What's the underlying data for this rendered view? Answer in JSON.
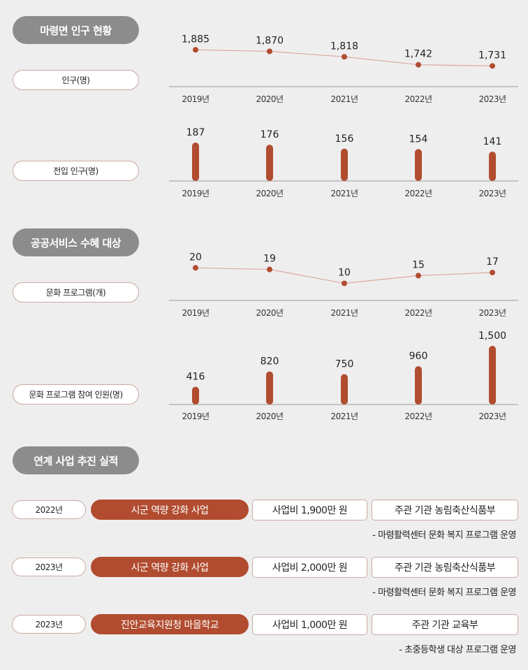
{
  "sections": {
    "population": "마령면 인구 현황",
    "service": "공공서비스 수혜 대상",
    "projects": "연계 사업 추진 실적"
  },
  "chart_data": [
    {
      "type": "line",
      "label": "인구(명)",
      "categories": [
        "2019년",
        "2020년",
        "2021년",
        "2022년",
        "2023년"
      ],
      "values": [
        1885,
        1870,
        1818,
        1742,
        1731
      ],
      "value_labels": [
        "1,885",
        "1,870",
        "1,818",
        "1,742",
        "1,731"
      ],
      "ylim": [
        1700,
        1900
      ]
    },
    {
      "type": "bar",
      "label": "전입 인구(명)",
      "categories": [
        "2019년",
        "2020년",
        "2021년",
        "2022년",
        "2023년"
      ],
      "values": [
        187,
        176,
        156,
        154,
        141
      ],
      "value_labels": [
        "187",
        "176",
        "156",
        "154",
        "141"
      ],
      "ylim": [
        0,
        187
      ]
    },
    {
      "type": "line",
      "label": "문화 프로그램(개)",
      "categories": [
        "2019년",
        "2020년",
        "2021년",
        "2022년",
        "2023년"
      ],
      "values": [
        20,
        19,
        10,
        15,
        17
      ],
      "value_labels": [
        "20",
        "19",
        "10",
        "15",
        "17"
      ],
      "ylim": [
        8,
        22
      ]
    },
    {
      "type": "bar",
      "label": "문화 프로그램 참여 인원(명)",
      "categories": [
        "2019년",
        "2020년",
        "2021년",
        "2022년",
        "2023년"
      ],
      "values": [
        416,
        820,
        750,
        960,
        1500
      ],
      "value_labels": [
        "416",
        "820",
        "750",
        "960",
        "1,500"
      ],
      "ylim": [
        0,
        1500
      ]
    }
  ],
  "projects": [
    {
      "year": "2022년",
      "name": "시군 역량 강화 사업",
      "budget": "사업비 1,900만 원",
      "org": "주관 기관 농림축산식품부",
      "note": "- 마령활력센터 문화 복지 프로그램 운영"
    },
    {
      "year": "2023년",
      "name": "시군 역량 강화 사업",
      "budget": "사업비 2,000만 원",
      "org": "주관 기관 농림축산식품부",
      "note": "- 마령활력센터 문화 복지 프로그램 운영"
    },
    {
      "year": "2023년",
      "name": "진안교육지원청 마을학교",
      "budget": "사업비 1,000만 원",
      "org": "주관 기관 교육부",
      "note": "- 초중등학생 대상 프로그램 운영"
    }
  ],
  "colors": {
    "accent": "#b14c30",
    "line": "#d9a9a0",
    "pill_gray": "#8c8c8c",
    "background": "#efeeee"
  }
}
